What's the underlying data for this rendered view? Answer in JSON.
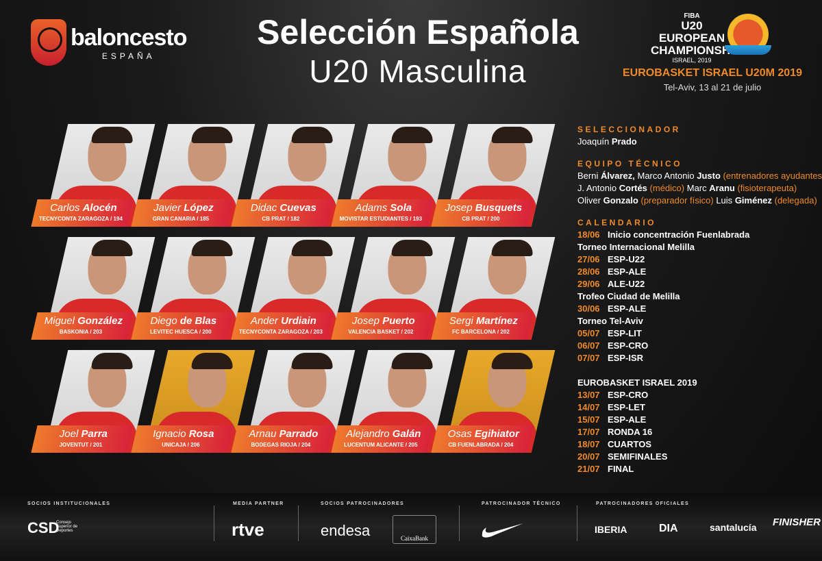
{
  "header": {
    "brand": "baloncesto",
    "brand_sub": "ESPAÑA",
    "title": "Selección Española",
    "subtitle": "U20 Masculina",
    "fiba_small": "FIBA",
    "fiba_line1": "U20 EUROPEAN",
    "fiba_line2": "CHAMPIONSHIP",
    "fiba_sub": "ISRAEL, 2019",
    "event": "EUROBASKET ISRAEL U20M 2019",
    "event_date": "Tel-Aviv, 13 al 21 de julio"
  },
  "players": [
    {
      "first": "Carlos",
      "last": "Alocén",
      "club": "TECNYCONTA ZARAGOZA / 194"
    },
    {
      "first": "Javier",
      "last": "López",
      "club": "GRAN CANARIA / 185"
    },
    {
      "first": "Didac",
      "last": "Cuevas",
      "club": "CB PRAT / 182"
    },
    {
      "first": "Adams",
      "last": "Sola",
      "club": "MOVISTAR ESTUDIANTES / 193"
    },
    {
      "first": "Josep",
      "last": "Busquets",
      "club": "CB PRAT / 200"
    },
    {
      "first": "Miguel",
      "last": "González",
      "club": "BASKONIA / 203"
    },
    {
      "first": "Diego",
      "last": "de Blas",
      "club": "LEVITEC HUESCA / 200"
    },
    {
      "first": "Ander",
      "last": "Urdiain",
      "club": "TECNYCONTA ZARAGOZA / 203"
    },
    {
      "first": "Josep",
      "last": "Puerto",
      "club": "VALENCIA BASKET / 202"
    },
    {
      "first": "Sergi",
      "last": "Martínez",
      "club": "FC BARCELONA / 202"
    },
    {
      "first": "Joel",
      "last": "Parra",
      "club": "JOVENTUT / 201"
    },
    {
      "first": "Ignacio",
      "last": "Rosa",
      "club": "UNICAJA / 206"
    },
    {
      "first": "Arnau",
      "last": "Parrado",
      "club": "BODEGAS RIOJA / 204"
    },
    {
      "first": "Alejandro",
      "last": "Galán",
      "club": "LUCENTUM ALICANTE / 205"
    },
    {
      "first": "Osas",
      "last": "Egihiator",
      "club": "CB FUENLABRADA / 204"
    }
  ],
  "staff": {
    "coach_heading": "SELECCIONADOR",
    "coach_first": "Joaquín",
    "coach_last": "Prado",
    "team_heading": "EQUIPO TÉCNICO",
    "l1a": "Berni",
    "l1b": "Álvarez,",
    "l1c": "Marco Antonio",
    "l1d": "Justo",
    "l1e": "(entrenadores ayudantes)",
    "l2a": "J. Antonio",
    "l2b": "Cortés",
    "l2c": "(médico)",
    "l2d": "Marc",
    "l2e": "Aranu",
    "l2f": "(fisioterapeuta)",
    "l3a": "Oliver",
    "l3b": "Gonzalo",
    "l3c": "(preparador físico)",
    "l3d": "Luis",
    "l3e": "Giménez",
    "l3f": "(delegada)"
  },
  "calendar": {
    "heading": "CALENDARIO",
    "rows": [
      {
        "d": "18/06",
        "t": "Inicio concentración Fuenlabrada"
      },
      {
        "h": "Torneo Internacional Melilla"
      },
      {
        "d": "27/06",
        "t": "ESP-U22"
      },
      {
        "d": "28/06",
        "t": "ESP-ALE"
      },
      {
        "d": "29/06",
        "t": "ALE-U22"
      },
      {
        "h": "Trofeo Ciudad de Melilla"
      },
      {
        "d": "30/06",
        "t": "ESP-ALE"
      },
      {
        "h": "Torneo Tel-Aviv"
      },
      {
        "d": "05/07",
        "t": "ESP-LIT"
      },
      {
        "d": "06/07",
        "t": "ESP-CRO"
      },
      {
        "d": "07/07",
        "t": "ESP-ISR"
      },
      {
        "gap": true
      },
      {
        "h": "EUROBASKET ISRAEL 2019"
      },
      {
        "d": "13/07",
        "t": "ESP-CRO"
      },
      {
        "d": "14/07",
        "t": "ESP-LET"
      },
      {
        "d": "15/07",
        "t": "ESP-ALE"
      },
      {
        "d": "17/07",
        "t": "RONDA 16"
      },
      {
        "d": "18/07",
        "t": "CUARTOS"
      },
      {
        "d": "20/07",
        "t": "SEMIFINALES"
      },
      {
        "d": "21/07",
        "t": "FINAL"
      }
    ]
  },
  "footer": {
    "inst": "SOCIOS INSTITUCIONALES",
    "media": "MEDIA PARTNER",
    "socios": "SOCIOS PATROCINADORES",
    "tecnico": "PATROCINADOR TÉCNICO",
    "oficiales": "PATROCINADORES OFICIALES",
    "csd": "CSD",
    "csd_sub": "Consejo Superior de Deportes",
    "rtve": "rtve",
    "endesa": "endesa",
    "caixa": "CaixaBank",
    "iberia": "IBERIA",
    "dia": "DIA",
    "santalucia": "santalucía",
    "finisher": "FINISHER"
  },
  "accent": "#f08a28"
}
